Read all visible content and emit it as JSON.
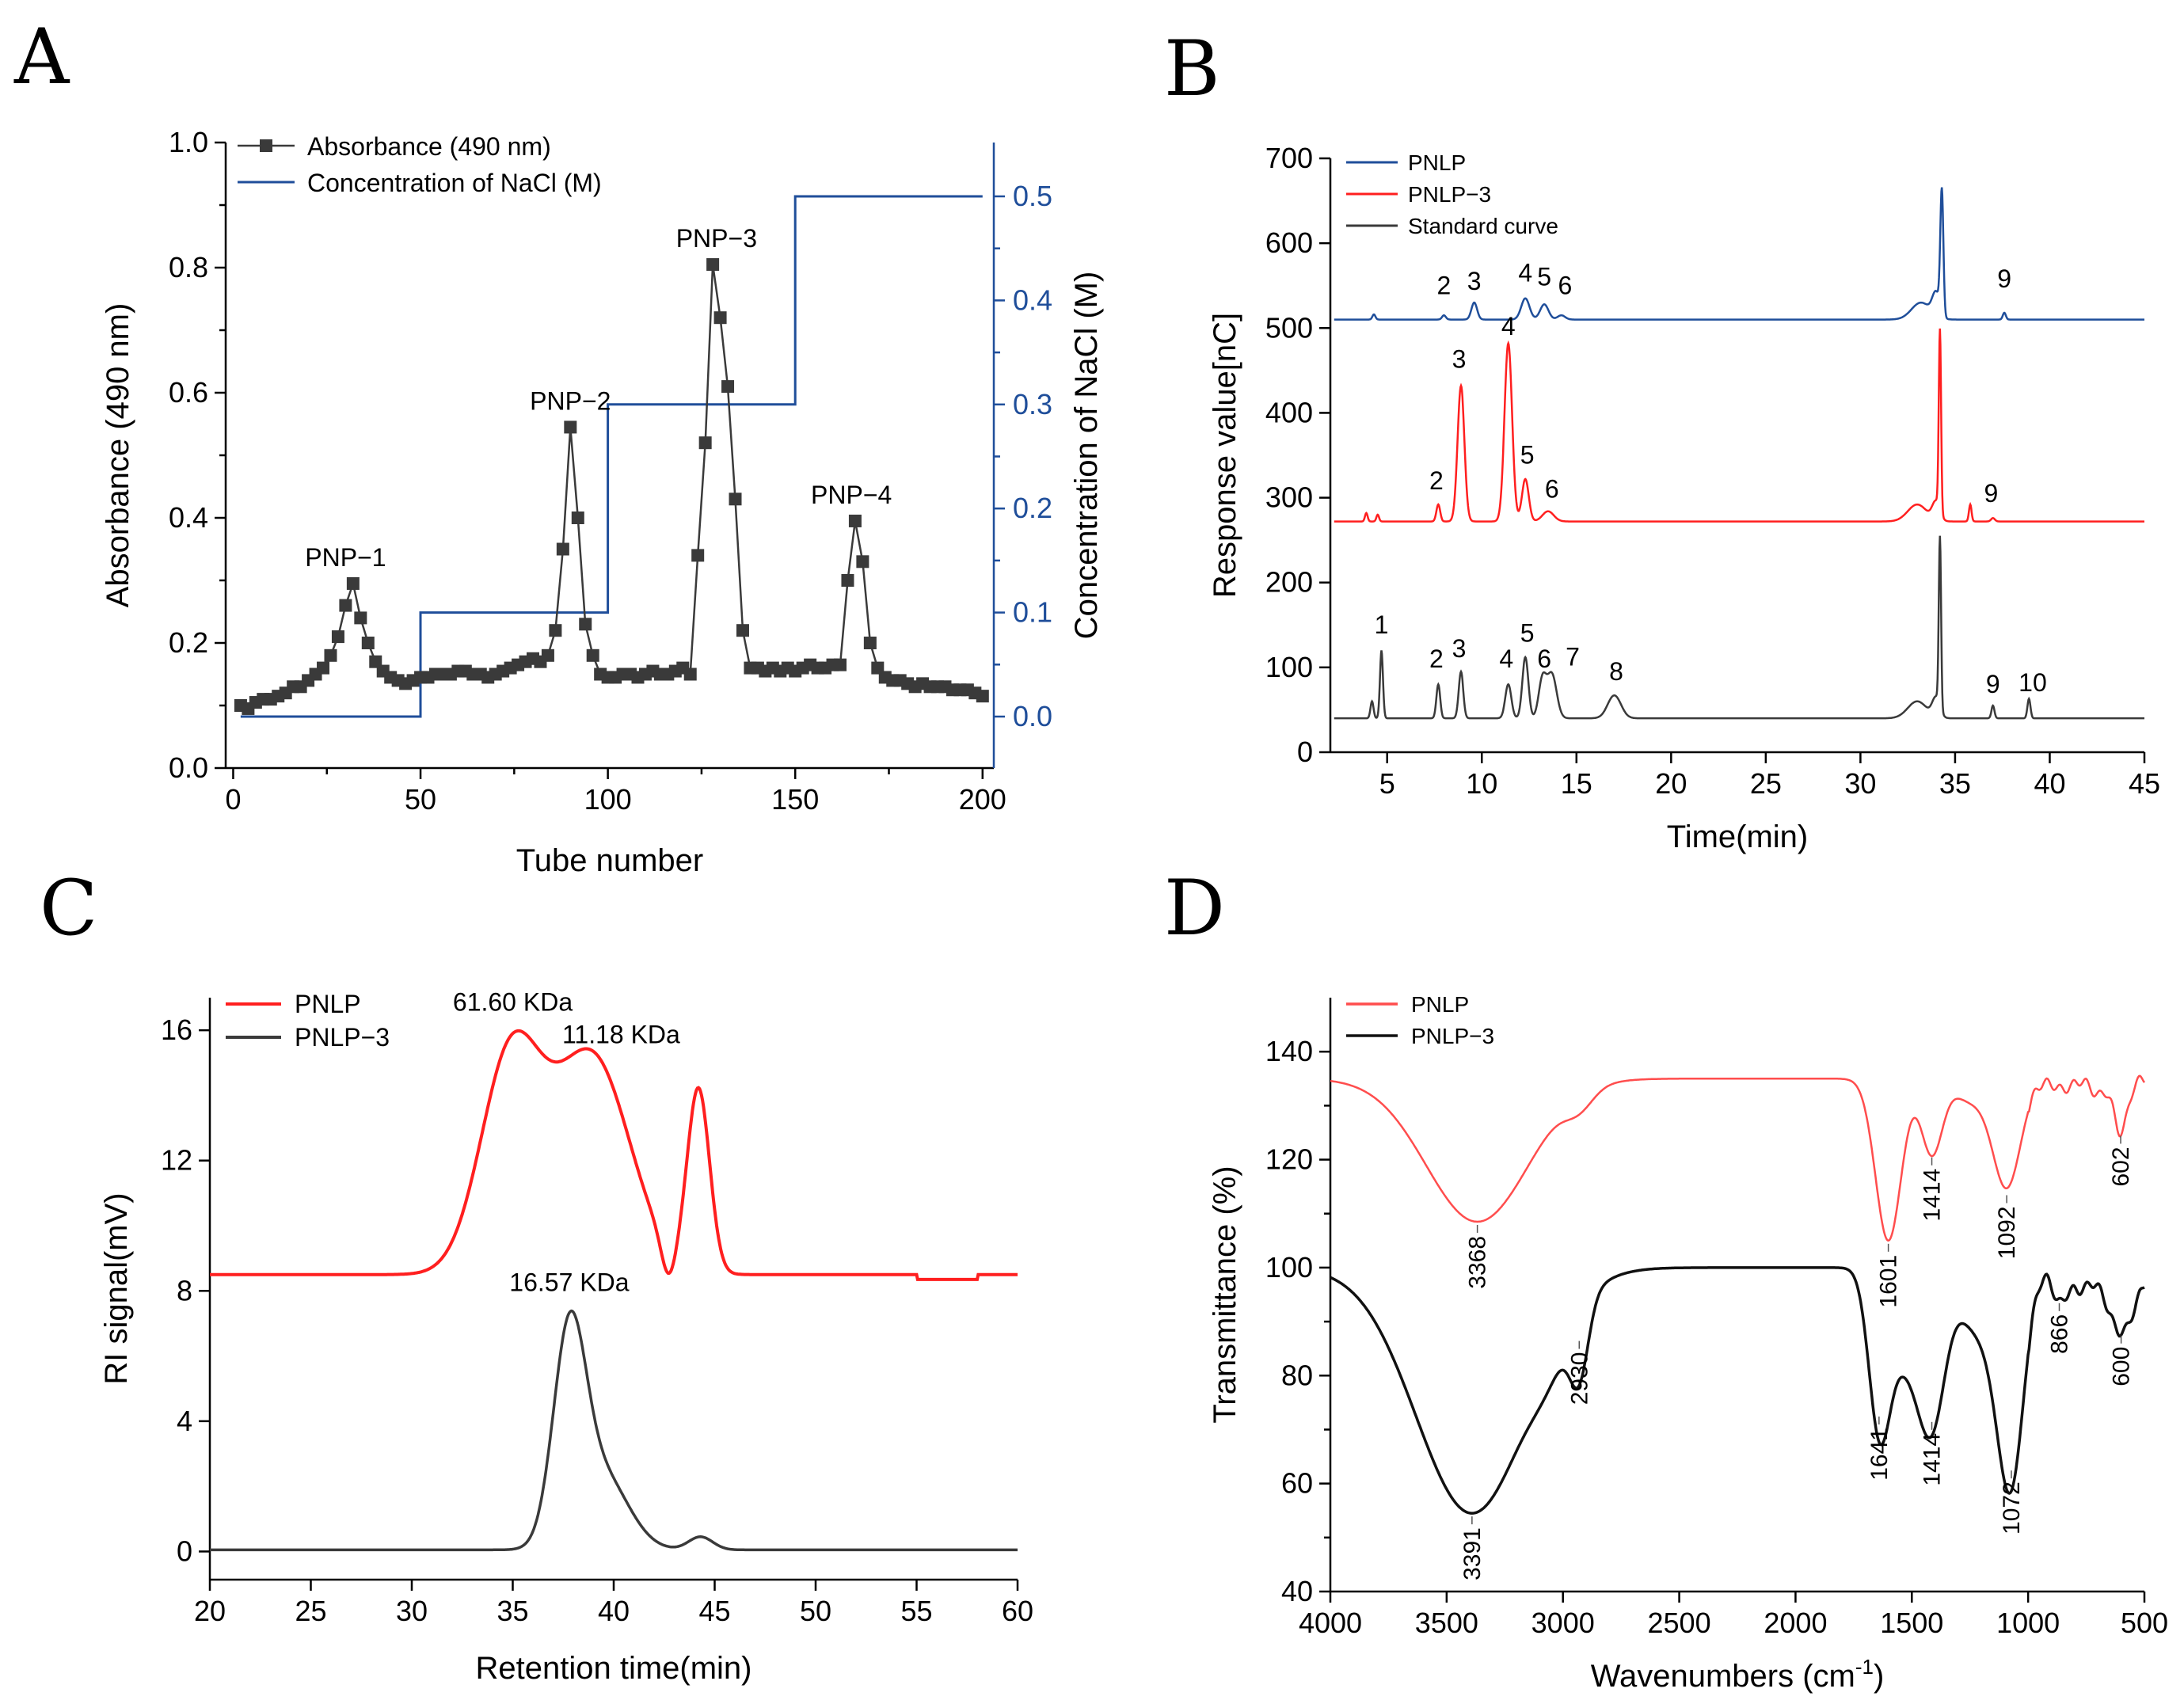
{
  "panels": {
    "A": {
      "letter": "A"
    },
    "B": {
      "letter": "B"
    },
    "C": {
      "letter": "C"
    },
    "D": {
      "letter": "D"
    }
  },
  "colors": {
    "dark": "#3a3a3a",
    "blue": "#1f4e9a",
    "red": "#ff1f1f",
    "red_light": "#ff4d4d",
    "black": "#111111"
  },
  "chart_data": [
    {
      "panel": "A",
      "type": "line",
      "xlabel": "Tube number",
      "ylabel": "Absorbance (490 nm)",
      "y2label": "Concentration of NaCl (M)",
      "xlim": [
        0,
        200
      ],
      "ylim": [
        0,
        1.0
      ],
      "y2lim": [
        -0.05,
        0.55
      ],
      "xticks": [
        "0",
        "50",
        "100",
        "150",
        "200"
      ],
      "yticks": [
        "0.0",
        "0.2",
        "0.4",
        "0.6",
        "0.8",
        "1.0"
      ],
      "y2ticks": [
        "0.0",
        "0.1",
        "0.2",
        "0.3",
        "0.4",
        "0.5"
      ],
      "legend": [
        "Absorbance (490 nm)",
        "Concentration of NaCl (M)"
      ],
      "legend_position": "top-left",
      "peak_labels": [
        {
          "text": "PNP−1",
          "x": 30,
          "y": 0.295
        },
        {
          "text": "PNP−2",
          "x": 90,
          "y": 0.545
        },
        {
          "text": "PNP−3",
          "x": 129,
          "y": 0.805
        },
        {
          "text": "PNP−4",
          "x": 165,
          "y": 0.395
        }
      ],
      "series": [
        {
          "name": "Absorbance (490 nm)",
          "x": [
            2,
            4,
            6,
            8,
            10,
            12,
            14,
            16,
            18,
            20,
            22,
            24,
            26,
            28,
            30,
            32,
            34,
            36,
            38,
            40,
            42,
            44,
            46,
            48,
            50,
            52,
            54,
            56,
            58,
            60,
            62,
            64,
            66,
            68,
            70,
            72,
            74,
            76,
            78,
            80,
            82,
            84,
            86,
            88,
            90,
            92,
            94,
            96,
            98,
            100,
            102,
            104,
            106,
            108,
            110,
            112,
            114,
            116,
            118,
            120,
            122,
            124,
            126,
            128,
            130,
            132,
            134,
            136,
            138,
            140,
            142,
            144,
            146,
            148,
            150,
            152,
            154,
            156,
            158,
            160,
            162,
            164,
            166,
            168,
            170,
            172,
            174,
            176,
            178,
            180,
            182,
            184,
            186,
            188,
            190,
            192,
            194,
            196,
            198,
            200
          ],
          "values": [
            0.1,
            0.095,
            0.105,
            0.11,
            0.11,
            0.115,
            0.12,
            0.13,
            0.13,
            0.14,
            0.15,
            0.16,
            0.18,
            0.21,
            0.26,
            0.295,
            0.24,
            0.2,
            0.17,
            0.155,
            0.145,
            0.14,
            0.135,
            0.14,
            0.145,
            0.145,
            0.15,
            0.15,
            0.15,
            0.155,
            0.155,
            0.15,
            0.15,
            0.145,
            0.15,
            0.155,
            0.16,
            0.165,
            0.17,
            0.175,
            0.17,
            0.18,
            0.22,
            0.35,
            0.545,
            0.4,
            0.23,
            0.18,
            0.15,
            0.145,
            0.145,
            0.15,
            0.15,
            0.145,
            0.15,
            0.155,
            0.15,
            0.15,
            0.155,
            0.16,
            0.15,
            0.34,
            0.52,
            0.805,
            0.72,
            0.61,
            0.43,
            0.22,
            0.16,
            0.16,
            0.155,
            0.16,
            0.155,
            0.16,
            0.155,
            0.16,
            0.165,
            0.16,
            0.16,
            0.165,
            0.165,
            0.3,
            0.395,
            0.33,
            0.2,
            0.16,
            0.145,
            0.14,
            0.14,
            0.135,
            0.13,
            0.135,
            0.13,
            0.13,
            0.13,
            0.125,
            0.125,
            0.125,
            0.12,
            0.115
          ]
        },
        {
          "name": "Concentration of NaCl (M)",
          "axis": "right",
          "x": [
            2,
            50,
            50,
            100,
            100,
            150,
            150,
            200
          ],
          "values": [
            0,
            0,
            0.1,
            0.1,
            0.3,
            0.3,
            0.5,
            0.5
          ]
        }
      ]
    },
    {
      "panel": "B",
      "type": "line",
      "xlabel": "Time(min)",
      "ylabel": "Response value[nC]",
      "xlim": [
        2,
        45
      ],
      "ylim": [
        0,
        700
      ],
      "xticks": [
        "5",
        "10",
        "15",
        "20",
        "25",
        "30",
        "35",
        "40",
        "45"
      ],
      "yticks": [
        "0",
        "100",
        "200",
        "300",
        "400",
        "500",
        "600",
        "700"
      ],
      "legend": [
        "PNLP",
        "PNLP−3",
        "Standard curve"
      ],
      "legend_position": "top-left",
      "series": [
        {
          "name": "PNLP",
          "baseline": 510,
          "peaks": [
            [
              4.3,
              6,
              0.08
            ],
            [
              8.0,
              5,
              0.1
            ],
            [
              9.6,
              20,
              0.15
            ],
            [
              12.3,
              25,
              0.22
            ],
            [
              13.3,
              18,
              0.22
            ],
            [
              14.2,
              5,
              0.2
            ],
            [
              33.2,
              20,
              0.5
            ],
            [
              34.0,
              28,
              0.2
            ],
            [
              34.3,
              145,
              0.08
            ],
            [
              37.6,
              8,
              0.08
            ]
          ],
          "labels": [
            {
              "text": "2",
              "x": 8.0,
              "y": 540
            },
            {
              "text": "3",
              "x": 9.6,
              "y": 545
            },
            {
              "text": "4",
              "x": 12.3,
              "y": 555
            },
            {
              "text": "5",
              "x": 13.3,
              "y": 550
            },
            {
              "text": "6",
              "x": 14.4,
              "y": 540
            },
            {
              "text": "9",
              "x": 37.6,
              "y": 548
            }
          ]
        },
        {
          "name": "PNLP−3",
          "baseline": 272,
          "peaks": [
            [
              3.9,
              10,
              0.07
            ],
            [
              4.5,
              8,
              0.07
            ],
            [
              7.7,
              20,
              0.1
            ],
            [
              8.9,
              160,
              0.18
            ],
            [
              11.4,
              210,
              0.2
            ],
            [
              12.3,
              50,
              0.18
            ],
            [
              13.5,
              12,
              0.3
            ],
            [
              33.0,
              20,
              0.5
            ],
            [
              34.0,
              22,
              0.2
            ],
            [
              34.2,
              213,
              0.06
            ],
            [
              35.8,
              20,
              0.07
            ],
            [
              37.0,
              4,
              0.1
            ]
          ],
          "labels": [
            {
              "text": "2",
              "x": 7.6,
              "y": 310
            },
            {
              "text": "3",
              "x": 8.8,
              "y": 453
            },
            {
              "text": "4",
              "x": 11.4,
              "y": 492
            },
            {
              "text": "5",
              "x": 12.4,
              "y": 340
            },
            {
              "text": "6",
              "x": 13.7,
              "y": 300
            },
            {
              "text": "9",
              "x": 36.9,
              "y": 295
            }
          ]
        },
        {
          "name": "Standard curve",
          "baseline": 40,
          "peaks": [
            [
              4.2,
              20,
              0.08
            ],
            [
              4.7,
              80,
              0.08
            ],
            [
              7.7,
              40,
              0.1
            ],
            [
              8.9,
              55,
              0.12
            ],
            [
              11.4,
              40,
              0.16
            ],
            [
              12.3,
              72,
              0.16
            ],
            [
              13.2,
              45,
              0.2
            ],
            [
              13.7,
              52,
              0.25
            ],
            [
              17.0,
              27,
              0.35
            ],
            [
              33.0,
              20,
              0.5
            ],
            [
              34.0,
              23,
              0.2
            ],
            [
              34.2,
              200,
              0.06
            ],
            [
              37.0,
              15,
              0.08
            ],
            [
              38.9,
              23,
              0.08
            ]
          ],
          "labels": [
            {
              "text": "1",
              "x": 4.7,
              "y": 140
            },
            {
              "text": "2",
              "x": 7.6,
              "y": 100
            },
            {
              "text": "3",
              "x": 8.8,
              "y": 112
            },
            {
              "text": "4",
              "x": 11.3,
              "y": 100
            },
            {
              "text": "5",
              "x": 12.4,
              "y": 130
            },
            {
              "text": "6",
              "x": 13.3,
              "y": 100
            },
            {
              "text": "7",
              "x": 14.8,
              "y": 102
            },
            {
              "text": "8",
              "x": 17.1,
              "y": 85
            },
            {
              "text": "9",
              "x": 37.0,
              "y": 70
            },
            {
              "text": "10",
              "x": 39.1,
              "y": 72
            }
          ]
        }
      ]
    },
    {
      "panel": "C",
      "type": "line",
      "xlabel": "Retention time(min)",
      "ylabel": "RI signal(mV)",
      "xlim": [
        20,
        60
      ],
      "ylim": [
        -0.5,
        17
      ],
      "xticks": [
        "20",
        "25",
        "30",
        "35",
        "40",
        "45",
        "50",
        "55",
        "60"
      ],
      "yticks": [
        "0",
        "4",
        "8",
        "12",
        "16"
      ],
      "legend": [
        "PNLP",
        "PNLP−3"
      ],
      "legend_position": "top-left",
      "annotations": [
        {
          "text": "61.60 KDa",
          "x": 35.0,
          "y": 16.6
        },
        {
          "text": "11.18 KDa",
          "x": 38.8,
          "y": 15.6
        },
        {
          "text": "16.57 KDa",
          "x": 37.8,
          "y": 8.0
        }
      ],
      "series": [
        {
          "name": "PNLP",
          "baseline": 8.5,
          "peaks": [
            [
              34.9,
              6.6,
              1.5
            ],
            [
              38.9,
              6.7,
              1.9
            ],
            [
              44.2,
              5.6,
              0.55
            ],
            [
              42.7,
              -1.0,
              0.35
            ]
          ]
        },
        {
          "name": "PNLP−3",
          "baseline": 0.05,
          "peaks": [
            [
              37.8,
              6.2,
              0.8
            ],
            [
              39.4,
              2.3,
              1.3
            ],
            [
              44.3,
              0.4,
              0.6
            ]
          ]
        }
      ]
    },
    {
      "panel": "D",
      "type": "line",
      "xlabel": "Wavenumbers (cm",
      "xlabel_sup": "-1",
      "xlabel_close": ")",
      "ylabel": "Transmittance (%)",
      "xlim": [
        4000,
        500
      ],
      "ylim": [
        40,
        150
      ],
      "xticks": [
        "4000",
        "3500",
        "3000",
        "2500",
        "2000",
        "1500",
        "1000",
        "500"
      ],
      "yticks": [
        "40",
        "60",
        "80",
        "100",
        "120",
        "140"
      ],
      "legend": [
        "PNLP",
        "PNLP−3"
      ],
      "legend_position": "top-left",
      "series": [
        {
          "name": "PNLP",
          "baseline": 135,
          "dips": [
            [
              3368,
              26.5,
              220
            ],
            [
              2930,
              3,
              60
            ],
            [
              1601,
              30,
              55
            ],
            [
              1414,
              14,
              45
            ],
            [
              1092,
              20,
              60
            ],
            [
              1250,
              4,
              70
            ],
            [
              602,
              10,
              30
            ],
            [
              850,
              2,
              40
            ],
            [
              700,
              3,
              30
            ]
          ],
          "labels": [
            "3368",
            "1601",
            "1414",
            "1092",
            "602"
          ]
        },
        {
          "name": "PNLP−3",
          "baseline": 100,
          "dips": [
            [
              3391,
              45.5,
              240
            ],
            [
              2930,
              13,
              40
            ],
            [
              3050,
              5,
              80
            ],
            [
              1641,
              27,
              45
            ],
            [
              1414,
              28,
              60
            ],
            [
              1540,
              15,
              70
            ],
            [
              1072,
              37,
              55
            ],
            [
              1150,
              10,
              60
            ],
            [
              1250,
              8,
              60
            ],
            [
              866,
              6,
              30
            ],
            [
              600,
              12,
              60
            ],
            [
              780,
              4,
              40
            ]
          ],
          "labels": [
            "3391",
            "2930",
            "1641",
            "1414",
            "1072",
            "866",
            "600"
          ]
        }
      ]
    }
  ],
  "peak_label_data": {
    "D_pnlp": [
      {
        "text": "3368",
        "x": 3368,
        "y": 108.5
      },
      {
        "text": "1601",
        "x": 1601,
        "y": 105
      },
      {
        "text": "1414",
        "x": 1414,
        "y": 121
      },
      {
        "text": "1092",
        "x": 1092,
        "y": 114
      },
      {
        "text": "602",
        "x": 602,
        "y": 125
      }
    ],
    "D_pnlp3": [
      {
        "text": "3391",
        "x": 3391,
        "y": 54.5
      },
      {
        "text": "2930",
        "x": 2930,
        "y": 87
      },
      {
        "text": "1641",
        "x": 1641,
        "y": 73
      },
      {
        "text": "1414",
        "x": 1414,
        "y": 72
      },
      {
        "text": "1072",
        "x": 1072,
        "y": 63
      },
      {
        "text": "866",
        "x": 866,
        "y": 94
      },
      {
        "text": "600",
        "x": 600,
        "y": 88
      }
    ]
  }
}
